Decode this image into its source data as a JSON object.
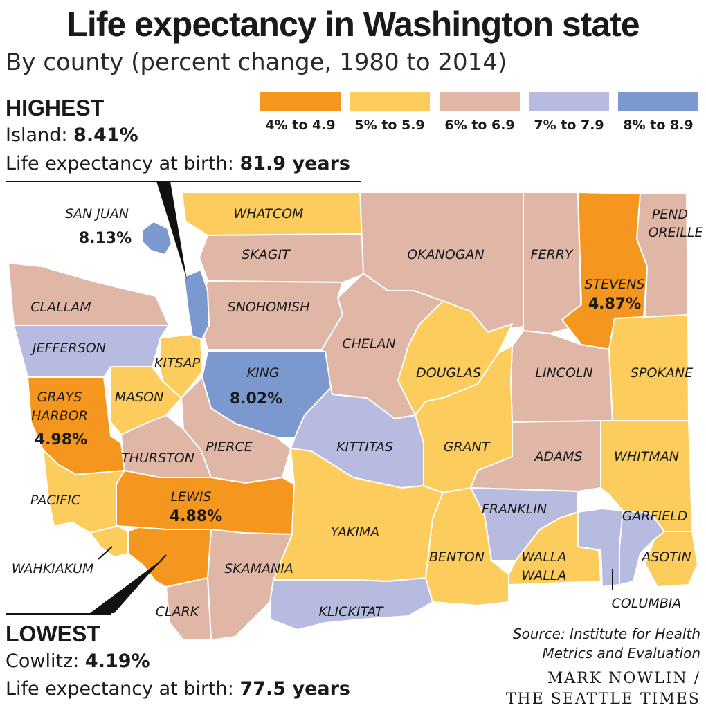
{
  "title": "Life expectancy in Washington state",
  "subtitle": "By county (percent change, 1980 to 2014)",
  "highest": {
    "heading": "HIGHEST",
    "county": "Island:",
    "value": "8.41%",
    "life_label": "Life expectancy at birth:",
    "life_value": "81.9 years"
  },
  "lowest": {
    "heading": "LOWEST",
    "county": "Cowlitz:",
    "value": "4.19%",
    "life_label": "Life expectancy at birth:",
    "life_value": "77.5 years"
  },
  "legend": [
    {
      "label": "4% to 4.9",
      "color": "#f5961e"
    },
    {
      "label": "5% to 5.9",
      "color": "#fccc5c"
    },
    {
      "label": "6% to 6.9",
      "color": "#e0b7a6"
    },
    {
      "label": "7% to 7.9",
      "color": "#b7bbe0"
    },
    {
      "label": "8% to 8.9",
      "color": "#7b98cf"
    }
  ],
  "counties": [
    {
      "name": "SAN JUAN",
      "value": "8.13%",
      "cls": 4
    },
    {
      "name": "WHATCOM",
      "cls": 1
    },
    {
      "name": "SKAGIT",
      "cls": 2
    },
    {
      "name": "OKANOGAN",
      "cls": 2
    },
    {
      "name": "FERRY",
      "cls": 2
    },
    {
      "name": "STEVENS",
      "value": "4.87%",
      "cls": 0
    },
    {
      "name": "PEND OREILLE",
      "cls": 2
    },
    {
      "name": "CLALLAM",
      "cls": 2
    },
    {
      "name": "SNOHOMISH",
      "cls": 2
    },
    {
      "name": "JEFFERSON",
      "cls": 3
    },
    {
      "name": "KITSAP",
      "cls": 1
    },
    {
      "name": "CHELAN",
      "cls": 2
    },
    {
      "name": "KING",
      "value": "8.02%",
      "cls": 4
    },
    {
      "name": "DOUGLAS",
      "cls": 1
    },
    {
      "name": "LINCOLN",
      "cls": 2
    },
    {
      "name": "SPOKANE",
      "cls": 1
    },
    {
      "name": "GRAYS HARBOR",
      "value": "4.98%",
      "cls": 0
    },
    {
      "name": "MASON",
      "cls": 1
    },
    {
      "name": "PIERCE",
      "cls": 2
    },
    {
      "name": "THURSTON",
      "cls": 2
    },
    {
      "name": "KITTITAS",
      "cls": 3
    },
    {
      "name": "GRANT",
      "cls": 1
    },
    {
      "name": "ADAMS",
      "cls": 2
    },
    {
      "name": "WHITMAN",
      "cls": 1
    },
    {
      "name": "PACIFIC",
      "cls": 1
    },
    {
      "name": "LEWIS",
      "value": "4.88%",
      "cls": 0
    },
    {
      "name": "FRANKLIN",
      "cls": 3
    },
    {
      "name": "GARFIELD",
      "cls": 3
    },
    {
      "name": "YAKIMA",
      "cls": 1
    },
    {
      "name": "WAHKIAKUM",
      "cls": 1
    },
    {
      "name": "BENTON",
      "cls": 1
    },
    {
      "name": "WALLA WALLA",
      "cls": 1
    },
    {
      "name": "ASOTIN",
      "cls": 1
    },
    {
      "name": "SKAMANIA",
      "cls": 2
    },
    {
      "name": "COLUMBIA",
      "cls": 3
    },
    {
      "name": "CLARK",
      "cls": 2
    },
    {
      "name": "KLICKITAT",
      "cls": 3
    },
    {
      "name": "ISLAND",
      "cls": 4
    },
    {
      "name": "COWLITZ",
      "cls": 0
    }
  ],
  "source": [
    "Source: Institute for Health",
    "Metrics and Evaluation"
  ],
  "credit": [
    "MARK NOWLIN /",
    "THE SEATTLE TIMES"
  ]
}
